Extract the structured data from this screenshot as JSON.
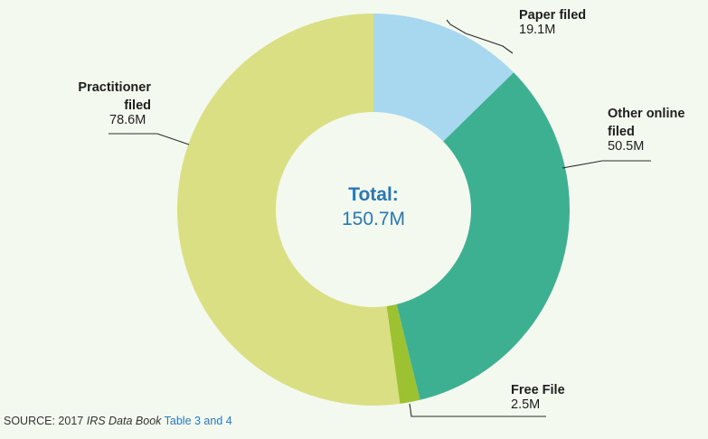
{
  "chart_data": {
    "type": "pie",
    "donut": true,
    "start_angle_deg": 0,
    "direction": "clockwise",
    "slices": [
      {
        "name_lines": [
          "Paper filed"
        ],
        "value_label": "19.1M",
        "value": 19.1,
        "color": "#a8d8f0"
      },
      {
        "name_lines": [
          "Other online",
          "filed"
        ],
        "value_label": "50.5M",
        "value": 50.5,
        "color": "#3eb092"
      },
      {
        "name_lines": [
          "Free File"
        ],
        "value_label": "2.5M",
        "value": 2.5,
        "color": "#9cc131"
      },
      {
        "name_lines": [
          "Practitioner",
          "filed"
        ],
        "value_label": "78.6M",
        "value": 78.6,
        "color": "#d9df82"
      }
    ],
    "center": {
      "title": "Total:",
      "value": "150.7M"
    }
  },
  "source": {
    "prefix": "SOURCE: 2017 ",
    "book": "IRS Data Book",
    "link": " Table 3 and 4"
  }
}
